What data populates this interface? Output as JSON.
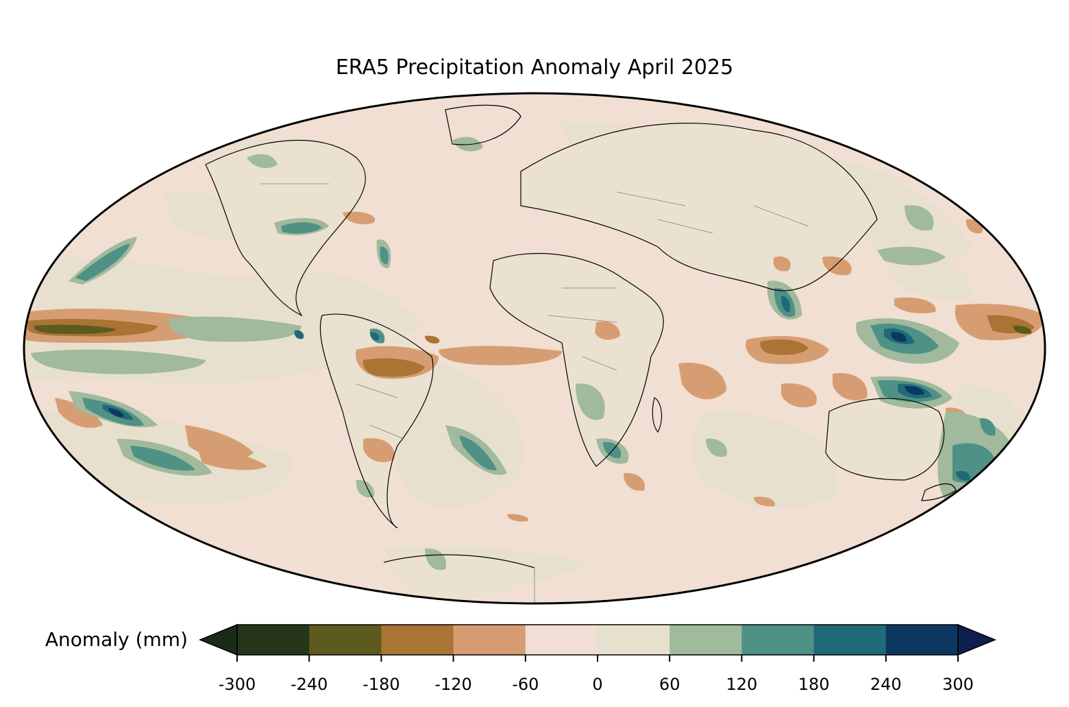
{
  "title": "ERA5 Precipitation Anomaly April 2025",
  "colorbar": {
    "label": "Anomaly (mm)",
    "ticks": [
      "-300",
      "-240",
      "-180",
      "-120",
      "-60",
      "0",
      "60",
      "120",
      "180",
      "240",
      "300"
    ],
    "levels": [
      -300,
      -240,
      -180,
      -120,
      -60,
      0,
      60,
      120,
      180,
      240,
      300
    ],
    "colors": [
      "#26361a",
      "#5c5a1e",
      "#a97434",
      "#d79d72",
      "#f0dfd2",
      "#e8e0cf",
      "#a1b99c",
      "#4f9184",
      "#1e6a78",
      "#0d3660"
    ],
    "extend_low_color": "#1c2a18",
    "extend_high_color": "#0f1f4d"
  },
  "map": {
    "projection": "mollweide",
    "ocean_background": "#f0dfd2",
    "coastline_color": "#000000",
    "border_color": "#808080"
  }
}
